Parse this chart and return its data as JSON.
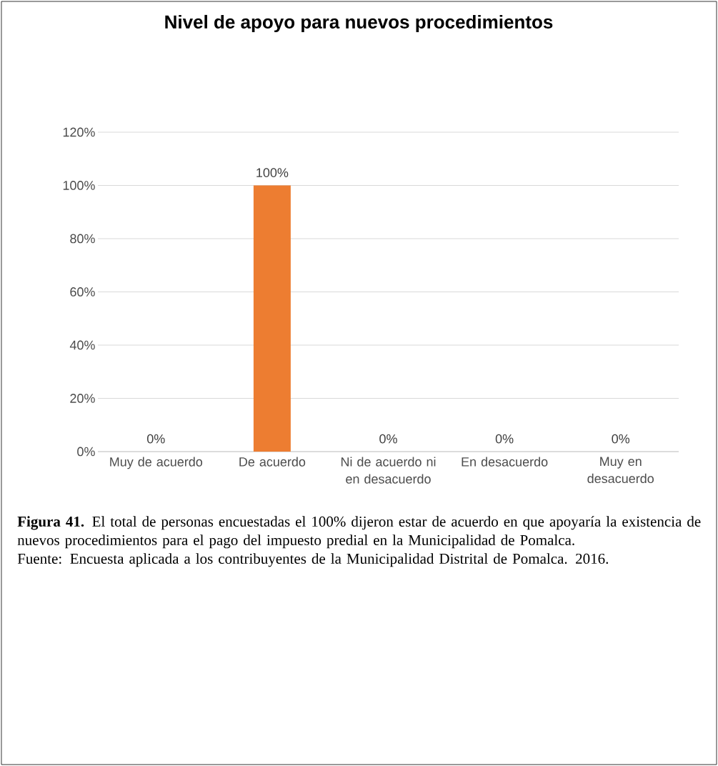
{
  "chart_data": {
    "type": "bar",
    "title": "Nivel de apoyo para nuevos procedimientos",
    "categories": [
      "Muy de acuerdo",
      "De acuerdo",
      "Ni de acuerdo ni en desacuerdo",
      "En desacuerdo",
      "Muy en desacuerdo"
    ],
    "values": [
      0,
      100,
      0,
      0,
      0
    ],
    "value_labels": [
      "0%",
      "100%",
      "0%",
      "0%",
      "0%"
    ],
    "color": "#ed7d31",
    "ylim": [
      0,
      120
    ],
    "yticks": [
      {
        "value": 0,
        "label": "0%"
      },
      {
        "value": 20,
        "label": "20%"
      },
      {
        "value": 40,
        "label": "40%"
      },
      {
        "value": 60,
        "label": "60%"
      },
      {
        "value": 80,
        "label": "80%"
      },
      {
        "value": 100,
        "label": "100%"
      },
      {
        "value": 120,
        "label": "120%"
      }
    ],
    "grid": "y",
    "annotations": [
      "**Figura 41.** El total de personas encuestadas el 100% dijeron estar de acuerdo en que apoyaría la existencia de nuevos procedimientos para el pago del impuesto predial en la Municipalidad de Pomalca.",
      "Fuente: Encuesta aplicada a los contribuyentes de la Municipalidad Distrital de Pomalca. 2016."
    ]
  }
}
